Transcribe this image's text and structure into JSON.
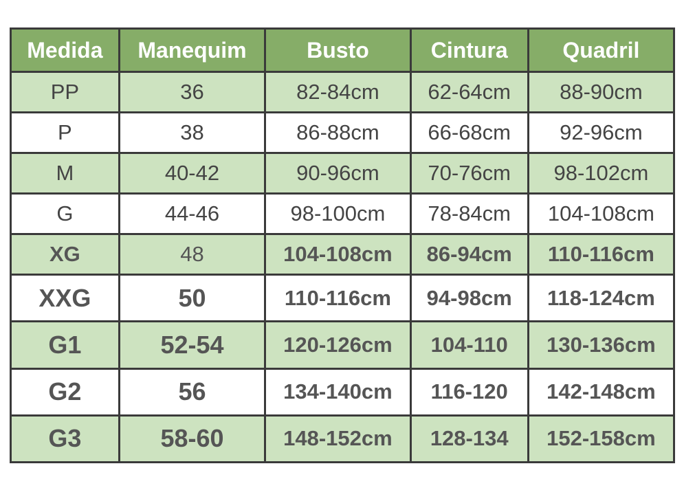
{
  "table": {
    "headers": [
      "Medida",
      "Manequim",
      "Busto",
      "Cintura",
      "Quadril"
    ],
    "rows": [
      [
        "PP",
        "36",
        "82-84cm",
        "62-64cm",
        "88-90cm"
      ],
      [
        "P",
        "38",
        "86-88cm",
        "66-68cm",
        "92-96cm"
      ],
      [
        "M",
        "40-42",
        "90-96cm",
        "70-76cm",
        "98-102cm"
      ],
      [
        "G",
        "44-46",
        "98-100cm",
        "78-84cm",
        "104-108cm"
      ],
      [
        "XG",
        "48",
        "104-108cm",
        "86-94cm",
        "110-116cm"
      ],
      [
        "XXG",
        "50",
        "110-116cm",
        "94-98cm",
        "118-124cm"
      ],
      [
        "G1",
        "52-54",
        "120-126cm",
        "104-110",
        "130-136cm"
      ],
      [
        "G2",
        "56",
        "134-140cm",
        "116-120",
        "142-148cm"
      ],
      [
        "G3",
        "58-60",
        "148-152cm",
        "128-134",
        "152-158cm"
      ]
    ]
  },
  "colors": {
    "header": "#86ad68",
    "shaded_row": "#cde3c0",
    "border": "#3a3a3a"
  }
}
